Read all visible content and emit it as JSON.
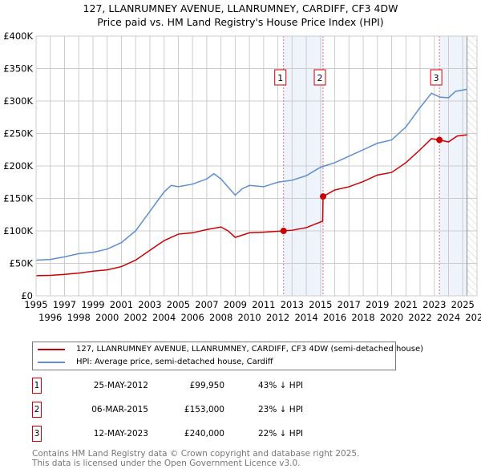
{
  "title": "127, LLANRUMNEY AVENUE, LLANRUMNEY, CARDIFF, CF3 4DW",
  "subtitle": "Price paid vs. HM Land Registry's House Price Index (HPI)",
  "chart_data": {
    "type": "line",
    "xlim": [
      1995,
      2026
    ],
    "ylim": [
      0,
      400000
    ],
    "yticks": [
      {
        "v": 0,
        "l": "£0"
      },
      {
        "v": 50000,
        "l": "£50K"
      },
      {
        "v": 100000,
        "l": "£100K"
      },
      {
        "v": 150000,
        "l": "£150K"
      },
      {
        "v": 200000,
        "l": "£200K"
      },
      {
        "v": 250000,
        "l": "£250K"
      },
      {
        "v": 300000,
        "l": "£300K"
      },
      {
        "v": 350000,
        "l": "£350K"
      },
      {
        "v": 400000,
        "l": "£400K"
      }
    ],
    "xticks": [
      "1995",
      "1996",
      "1997",
      "1998",
      "1999",
      "2000",
      "2001",
      "2002",
      "2003",
      "2004",
      "2005",
      "2006",
      "2007",
      "2008",
      "2009",
      "2010",
      "2011",
      "2012",
      "2013",
      "2014",
      "2015",
      "2016",
      "2017",
      "2018",
      "2019",
      "2020",
      "2021",
      "2022",
      "2023",
      "2024",
      "2025",
      "2026"
    ],
    "grid": true,
    "series": [
      {
        "name": "127, LLANRUMNEY AVENUE, LLANRUMNEY, CARDIFF, CF3 4DW (semi-detached house)",
        "color": "#cc0000",
        "x": [
          1995,
          1996,
          1997,
          1998,
          1999,
          2000,
          2001,
          2002,
          2003,
          2004,
          2005,
          2006,
          2007,
          2008,
          2008.5,
          2009,
          2010,
          2011,
          2012.4,
          2013,
          2014,
          2015.15,
          2015.18,
          2016,
          2017,
          2018,
          2019,
          2020,
          2021,
          2022,
          2022.8,
          2023.36,
          2024,
          2024.6,
          2025.3
        ],
        "y": [
          31000,
          31500,
          33000,
          35000,
          38000,
          40000,
          45000,
          55000,
          70000,
          85000,
          95000,
          97000,
          102000,
          106000,
          100000,
          90000,
          97000,
          98000,
          99950,
          101000,
          105000,
          115000,
          153000,
          163000,
          168000,
          176000,
          186000,
          190000,
          205000,
          225000,
          242000,
          240000,
          237000,
          246000,
          248000
        ]
      },
      {
        "name": "HPI: Average price, semi-detached house, Cardiff",
        "color": "#5b8fd0",
        "x": [
          1995,
          1996,
          1997,
          1998,
          1999,
          2000,
          2001,
          2002,
          2003,
          2004,
          2004.5,
          2005,
          2006,
          2007,
          2007.5,
          2008,
          2009,
          2009.5,
          2010,
          2011,
          2012,
          2013,
          2014,
          2015,
          2016,
          2017,
          2018,
          2019,
          2020,
          2021,
          2022,
          2022.8,
          2023.4,
          2024,
          2024.5,
          2025.3
        ],
        "y": [
          55000,
          56000,
          60000,
          65000,
          67000,
          72000,
          82000,
          100000,
          130000,
          160000,
          170000,
          168000,
          172000,
          180000,
          188000,
          180000,
          155000,
          165000,
          170000,
          168000,
          175000,
          178000,
          185000,
          198000,
          205000,
          215000,
          225000,
          235000,
          240000,
          260000,
          290000,
          312000,
          306000,
          305000,
          315000,
          318000
        ]
      }
    ],
    "sales": [
      {
        "n": "1",
        "x": 2012.4,
        "y": 99950
      },
      {
        "n": "2",
        "x": 2015.18,
        "y": 153000
      },
      {
        "n": "3",
        "x": 2023.36,
        "y": 240000
      }
    ],
    "shaded": [
      [
        2012.4,
        2015.18
      ],
      [
        2023.36,
        2025.3
      ]
    ],
    "data_end": 2025.3
  },
  "legend": {
    "red": "127, LLANRUMNEY AVENUE, LLANRUMNEY, CARDIFF, CF3 4DW (semi-detached house)",
    "blue": "HPI: Average price, semi-detached house, Cardiff"
  },
  "table": [
    {
      "n": "1",
      "date": "25-MAY-2012",
      "price": "£99,950",
      "hpi": "43% ↓ HPI"
    },
    {
      "n": "2",
      "date": "06-MAR-2015",
      "price": "£153,000",
      "hpi": "23% ↓ HPI"
    },
    {
      "n": "3",
      "date": "12-MAY-2023",
      "price": "£240,000",
      "hpi": "22% ↓ HPI"
    }
  ],
  "footer": [
    "Contains HM Land Registry data © Crown copyright and database right 2025.",
    "This data is licensed under the Open Government Licence v3.0."
  ]
}
